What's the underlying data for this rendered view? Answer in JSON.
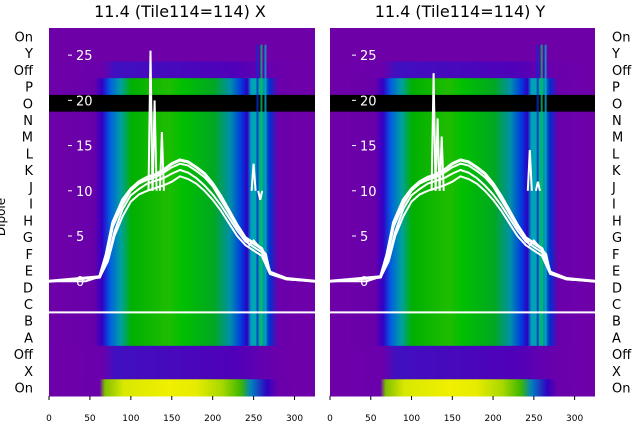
{
  "chart_data": [
    {
      "type": "heatmap",
      "title": "11.4 (Tile114=114) X",
      "x_ticks": [
        "0",
        "50",
        "100",
        "150",
        "200",
        "250",
        "300"
      ],
      "xlim": [
        0,
        325
      ],
      "row_labels": [
        "On",
        "Y",
        "Off",
        "P",
        "O",
        "N",
        "M",
        "L",
        "K",
        "J",
        "I",
        "H",
        "G",
        "F",
        "E",
        "D",
        "C",
        "B",
        "A",
        "Off",
        "X",
        "On"
      ],
      "ylabel": "Dipole",
      "overlay_ticks": [
        "25",
        "20",
        "15",
        "10",
        "5",
        "0"
      ],
      "overlay_ylim": [
        -3,
        28
      ],
      "masked_row": "O",
      "separator_between": [
        "C",
        "B"
      ],
      "overlay_series": [
        {
          "x": [
            0,
            20,
            45,
            62,
            70,
            78,
            90,
            100,
            110,
            120,
            130,
            140,
            150,
            160,
            170,
            180,
            190,
            200,
            210,
            220,
            230,
            238,
            245,
            250,
            255,
            260,
            265,
            270,
            280,
            300,
            325
          ],
          "y": [
            0,
            0,
            0,
            0.5,
            2.5,
            6,
            8.5,
            10,
            10.8,
            11.2,
            11.5,
            12,
            12.6,
            13,
            12.8,
            12.2,
            11.5,
            10.5,
            9,
            7.5,
            6,
            5,
            4,
            4.5,
            4,
            3.5,
            3,
            1,
            0.5,
            0.2,
            0
          ]
        },
        {
          "x": [
            0,
            62,
            70,
            78,
            90,
            100,
            110,
            120,
            130,
            140,
            150,
            160,
            170,
            180,
            190,
            200,
            210,
            220,
            230,
            240,
            250,
            260,
            270,
            290,
            325
          ],
          "y": [
            0,
            0.5,
            3,
            6.5,
            9,
            10.2,
            11,
            11.5,
            11.8,
            12.3,
            13,
            13.4,
            13.2,
            12.6,
            11.9,
            10.8,
            9.4,
            7.8,
            6.2,
            4.8,
            4.2,
            3.6,
            1,
            0.3,
            0
          ]
        },
        {
          "x": [
            0,
            62,
            72,
            80,
            90,
            100,
            110,
            120,
            130,
            140,
            150,
            160,
            170,
            180,
            190,
            200,
            210,
            220,
            230,
            240,
            250,
            260,
            270,
            290,
            325
          ],
          "y": [
            0,
            0.4,
            2.5,
            5.5,
            8,
            9.5,
            10.2,
            10.8,
            11.1,
            11.4,
            11.9,
            12.3,
            12,
            11.4,
            10.6,
            9.6,
            8.4,
            7,
            5.6,
            4.4,
            3.8,
            3.2,
            0.9,
            0.2,
            0
          ]
        },
        {
          "x": [
            0,
            62,
            72,
            80,
            90,
            100,
            110,
            120,
            130,
            140,
            150,
            160,
            170,
            180,
            190,
            200,
            210,
            220,
            230,
            240,
            250,
            260,
            270,
            290,
            325
          ],
          "y": [
            0,
            0.4,
            2.2,
            5,
            7.2,
            8.8,
            9.6,
            10,
            10.3,
            10.6,
            11,
            11.6,
            11.3,
            10.8,
            10,
            9,
            7.8,
            6.4,
            5,
            4,
            3.4,
            2.8,
            0.8,
            0.2,
            0
          ]
        }
      ],
      "spikes": [
        {
          "x": 124,
          "peak": 25.5
        },
        {
          "x": 129,
          "peak": 20
        },
        {
          "x": 138,
          "peak": 16.5
        },
        {
          "x": 250,
          "peak": 13
        },
        {
          "x": 258,
          "peak": 9
        }
      ]
    },
    {
      "type": "heatmap",
      "title": "11.4 (Tile114=114) Y",
      "x_ticks": [
        "0",
        "50",
        "100",
        "150",
        "200",
        "250",
        "300"
      ],
      "xlim": [
        0,
        325
      ],
      "row_labels": [
        "On",
        "Y",
        "Off",
        "P",
        "O",
        "N",
        "M",
        "L",
        "K",
        "J",
        "I",
        "H",
        "G",
        "F",
        "E",
        "D",
        "C",
        "B",
        "A",
        "Off",
        "X",
        "On"
      ],
      "overlay_ticks": [
        "25",
        "20",
        "15",
        "10",
        "5",
        "0"
      ],
      "overlay_ylim": [
        -3,
        28
      ],
      "masked_row": "O",
      "separator_between": [
        "C",
        "B"
      ],
      "overlay_series": [
        {
          "x": [
            0,
            20,
            45,
            62,
            70,
            78,
            90,
            100,
            110,
            120,
            130,
            140,
            150,
            160,
            170,
            180,
            190,
            200,
            210,
            220,
            230,
            238,
            245,
            250,
            255,
            260,
            265,
            270,
            280,
            300,
            325
          ],
          "y": [
            0,
            0,
            0,
            0.5,
            2.5,
            6,
            8.5,
            10,
            10.8,
            11.2,
            11.5,
            12,
            12.6,
            13,
            12.8,
            12.2,
            11.5,
            10.5,
            9,
            7.5,
            6,
            5,
            4,
            4.5,
            4,
            3.5,
            3,
            1,
            0.5,
            0.2,
            0
          ]
        },
        {
          "x": [
            0,
            62,
            70,
            78,
            90,
            100,
            110,
            120,
            130,
            140,
            150,
            160,
            170,
            180,
            190,
            200,
            210,
            220,
            230,
            240,
            250,
            260,
            270,
            290,
            325
          ],
          "y": [
            0,
            0.5,
            3,
            6.5,
            9,
            10.2,
            11,
            11.5,
            11.8,
            12.3,
            13,
            13.4,
            13.2,
            12.6,
            11.9,
            10.8,
            9.4,
            7.8,
            6.2,
            4.8,
            4.2,
            3.6,
            1,
            0.3,
            0
          ]
        },
        {
          "x": [
            0,
            62,
            72,
            80,
            90,
            100,
            110,
            120,
            130,
            140,
            150,
            160,
            170,
            180,
            190,
            200,
            210,
            220,
            230,
            240,
            250,
            260,
            270,
            290,
            325
          ],
          "y": [
            0,
            0.4,
            2.5,
            5.5,
            8,
            9.5,
            10.2,
            10.8,
            11.1,
            11.4,
            11.9,
            12.3,
            12,
            11.4,
            10.6,
            9.6,
            8.4,
            7,
            5.6,
            4.4,
            3.8,
            3.2,
            0.9,
            0.2,
            0
          ]
        },
        {
          "x": [
            0,
            62,
            72,
            80,
            90,
            100,
            110,
            120,
            130,
            140,
            150,
            160,
            170,
            180,
            190,
            200,
            210,
            220,
            230,
            240,
            250,
            260,
            270,
            290,
            325
          ],
          "y": [
            0,
            0.4,
            2.2,
            5,
            7.2,
            8.8,
            9.6,
            10,
            10.3,
            10.6,
            11,
            11.6,
            11.3,
            10.8,
            10,
            9,
            7.8,
            6.4,
            5,
            4,
            3.4,
            2.8,
            0.8,
            0.2,
            0
          ]
        }
      ],
      "spikes": [
        {
          "x": 127,
          "peak": 23
        },
        {
          "x": 132,
          "peak": 18
        },
        {
          "x": 137,
          "peak": 16
        },
        {
          "x": 245,
          "peak": 14.5
        },
        {
          "x": 255,
          "peak": 11
        }
      ]
    }
  ]
}
